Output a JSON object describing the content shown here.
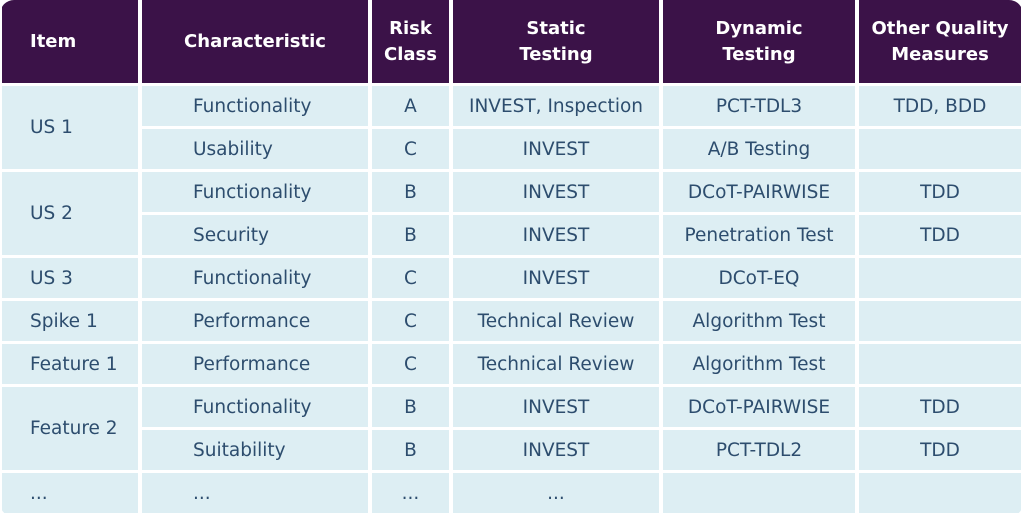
{
  "headers": {
    "item": "Item",
    "characteristic": "Characteristic",
    "risk_class_1": "Risk",
    "risk_class_2": "Class",
    "static_testing_1": "Static",
    "static_testing_2": "Testing",
    "dynamic_testing_1": "Dynamic",
    "dynamic_testing_2": "Testing",
    "other_quality_1": "Other Quality",
    "other_quality_2": "Measures"
  },
  "groups": [
    {
      "item": "US 1",
      "rows": [
        {
          "characteristic": "Functionality",
          "risk": "A",
          "static": "INVEST, Inspection",
          "dynamic": "PCT-TDL3",
          "other": "TDD, BDD"
        },
        {
          "characteristic": "Usability",
          "risk": "C",
          "static": "INVEST",
          "dynamic": "A/B Testing",
          "other": ""
        }
      ]
    },
    {
      "item": "US 2",
      "rows": [
        {
          "characteristic": "Functionality",
          "risk": "B",
          "static": "INVEST",
          "dynamic": "DCoT-PAIRWISE",
          "other": "TDD"
        },
        {
          "characteristic": "Security",
          "risk": "B",
          "static": "INVEST",
          "dynamic": "Penetration Test",
          "other": "TDD"
        }
      ]
    },
    {
      "item": "US 3",
      "rows": [
        {
          "characteristic": "Functionality",
          "risk": "C",
          "static": "INVEST",
          "dynamic": "DCoT-EQ",
          "other": ""
        }
      ]
    },
    {
      "item": "Spike 1",
      "rows": [
        {
          "characteristic": "Performance",
          "risk": "C",
          "static": "Technical Review",
          "dynamic": "Algorithm Test",
          "other": ""
        }
      ]
    },
    {
      "item": "Feature 1",
      "rows": [
        {
          "characteristic": "Performance",
          "risk": "C",
          "static": "Technical Review",
          "dynamic": "Algorithm Test",
          "other": ""
        }
      ]
    },
    {
      "item": "Feature 2",
      "rows": [
        {
          "characteristic": "Functionality",
          "risk": "B",
          "static": "INVEST",
          "dynamic": "DCoT-PAIRWISE",
          "other": "TDD"
        },
        {
          "characteristic": "Suitability",
          "risk": "B",
          "static": "INVEST",
          "dynamic": "PCT-TDL2",
          "other": "TDD"
        }
      ]
    },
    {
      "item": "...",
      "rows": [
        {
          "characteristic": "...",
          "risk": "...",
          "static": "...",
          "dynamic": "",
          "other": ""
        }
      ]
    }
  ],
  "colors": {
    "header_bg": "#3b1248",
    "cell_bg": "#ddeef3",
    "cell_text": "#2d4d6e"
  }
}
